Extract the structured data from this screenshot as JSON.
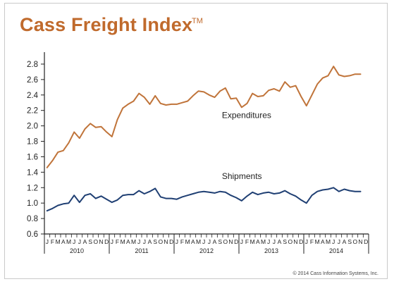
{
  "header": {
    "title": "Cass Freight Index",
    "trademark": "TM"
  },
  "footer": {
    "copyright": "© 2014 Cass Information Systems, Inc."
  },
  "colors": {
    "expenditures": "#c0743a",
    "shipments": "#1f3f73",
    "title": "#c06a2c"
  },
  "chart_data": {
    "type": "line",
    "title": "Cass Freight Index",
    "xlabel": "",
    "ylabel": "",
    "ylim": [
      0.6,
      2.9
    ],
    "y_ticks": [
      "0.6",
      "0.8",
      "1.0",
      "1.2",
      "1.4",
      "1.6",
      "1.8",
      "2.0",
      "2.2",
      "2.4",
      "2.6",
      "2.8"
    ],
    "month_labels": [
      "J",
      "F",
      "M",
      "A",
      "M",
      "J",
      "J",
      "A",
      "S",
      "O",
      "N",
      "D"
    ],
    "years": [
      "2010",
      "2011",
      "2012",
      "2013",
      "2014"
    ],
    "grid": false,
    "x": [
      "2010-01",
      "2010-02",
      "2010-03",
      "2010-04",
      "2010-05",
      "2010-06",
      "2010-07",
      "2010-08",
      "2010-09",
      "2010-10",
      "2010-11",
      "2010-12",
      "2011-01",
      "2011-02",
      "2011-03",
      "2011-04",
      "2011-05",
      "2011-06",
      "2011-07",
      "2011-08",
      "2011-09",
      "2011-10",
      "2011-11",
      "2011-12",
      "2012-01",
      "2012-02",
      "2012-03",
      "2012-04",
      "2012-05",
      "2012-06",
      "2012-07",
      "2012-08",
      "2012-09",
      "2012-10",
      "2012-11",
      "2012-12",
      "2013-01",
      "2013-02",
      "2013-03",
      "2013-04",
      "2013-05",
      "2013-06",
      "2013-07",
      "2013-08",
      "2013-09",
      "2013-10",
      "2013-11",
      "2013-12",
      "2014-01",
      "2014-02",
      "2014-03",
      "2014-04",
      "2014-05",
      "2014-06",
      "2014-07",
      "2014-08",
      "2014-09",
      "2014-10",
      "2014-11"
    ],
    "series": [
      {
        "name": "Expenditures",
        "values": [
          1.46,
          1.55,
          1.66,
          1.68,
          1.78,
          1.92,
          1.84,
          1.96,
          2.03,
          1.98,
          1.99,
          1.92,
          1.86,
          2.08,
          2.23,
          2.28,
          2.32,
          2.42,
          2.37,
          2.28,
          2.39,
          2.29,
          2.27,
          2.28,
          2.28,
          2.3,
          2.32,
          2.39,
          2.45,
          2.44,
          2.4,
          2.37,
          2.45,
          2.49,
          2.35,
          2.36,
          2.24,
          2.29,
          2.42,
          2.38,
          2.39,
          2.46,
          2.48,
          2.45,
          2.57,
          2.5,
          2.52,
          2.38,
          2.26,
          2.4,
          2.54,
          2.62,
          2.65,
          2.77,
          2.66,
          2.64,
          2.65,
          2.67,
          2.67
        ]
      },
      {
        "name": "Shipments",
        "values": [
          0.9,
          0.93,
          0.97,
          0.99,
          1.0,
          1.1,
          1.01,
          1.1,
          1.12,
          1.06,
          1.09,
          1.05,
          1.01,
          1.04,
          1.1,
          1.11,
          1.11,
          1.16,
          1.12,
          1.15,
          1.19,
          1.08,
          1.06,
          1.06,
          1.05,
          1.08,
          1.1,
          1.12,
          1.14,
          1.15,
          1.14,
          1.13,
          1.15,
          1.14,
          1.1,
          1.07,
          1.03,
          1.09,
          1.14,
          1.11,
          1.13,
          1.14,
          1.12,
          1.13,
          1.16,
          1.12,
          1.09,
          1.04,
          1.0,
          1.1,
          1.15,
          1.17,
          1.18,
          1.2,
          1.15,
          1.18,
          1.16,
          1.15,
          1.15
        ]
      }
    ],
    "annotations": [
      {
        "text": "Expenditures",
        "x": "2013-01",
        "y": 2.1
      },
      {
        "text": "Shipments",
        "x": "2013-01",
        "y": 1.31
      }
    ]
  }
}
